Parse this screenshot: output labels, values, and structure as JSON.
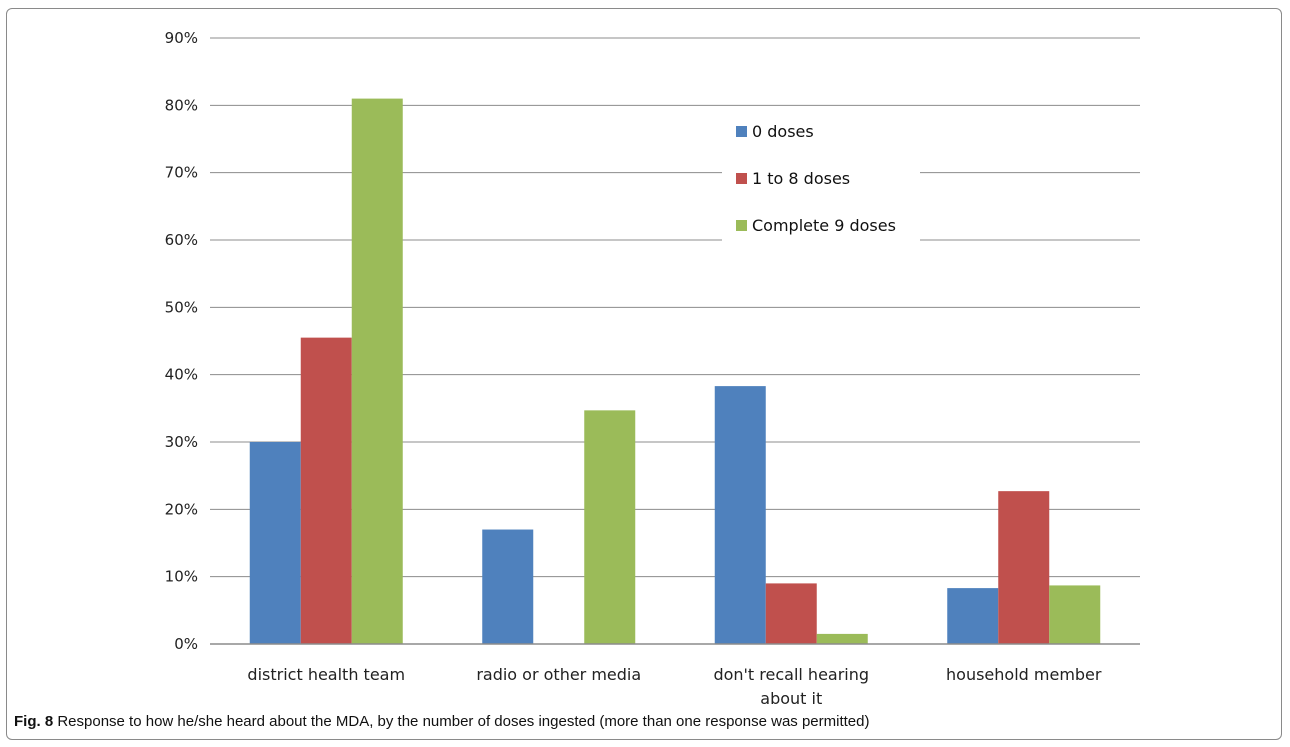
{
  "chart_data": {
    "type": "bar",
    "categories": [
      [
        "district health team"
      ],
      [
        "radio or other media"
      ],
      [
        "don't recall hearing",
        "about it"
      ],
      [
        "household member"
      ]
    ],
    "series": [
      {
        "name": "0 doses",
        "color": "#4f81bd",
        "values": [
          0.3,
          0.17,
          0.383,
          0.083
        ]
      },
      {
        "name": "1 to 8 doses",
        "color": "#c0504d",
        "values": [
          0.455,
          null,
          0.09,
          0.227
        ]
      },
      {
        "name": "Complete 9 doses",
        "color": "#9bbb59",
        "values": [
          0.81,
          0.347,
          0.015,
          0.087
        ]
      }
    ],
    "ylim": [
      0,
      0.9
    ],
    "yticks": [
      "0%",
      "10%",
      "20%",
      "30%",
      "40%",
      "50%",
      "60%",
      "70%",
      "80%",
      "90%"
    ],
    "grid": true,
    "legend_position": "upper-right"
  },
  "caption": {
    "label": "Fig. 8",
    "text": " Response to how he/she heard about the MDA, by the number of doses ingested (more than one response was permitted)"
  }
}
